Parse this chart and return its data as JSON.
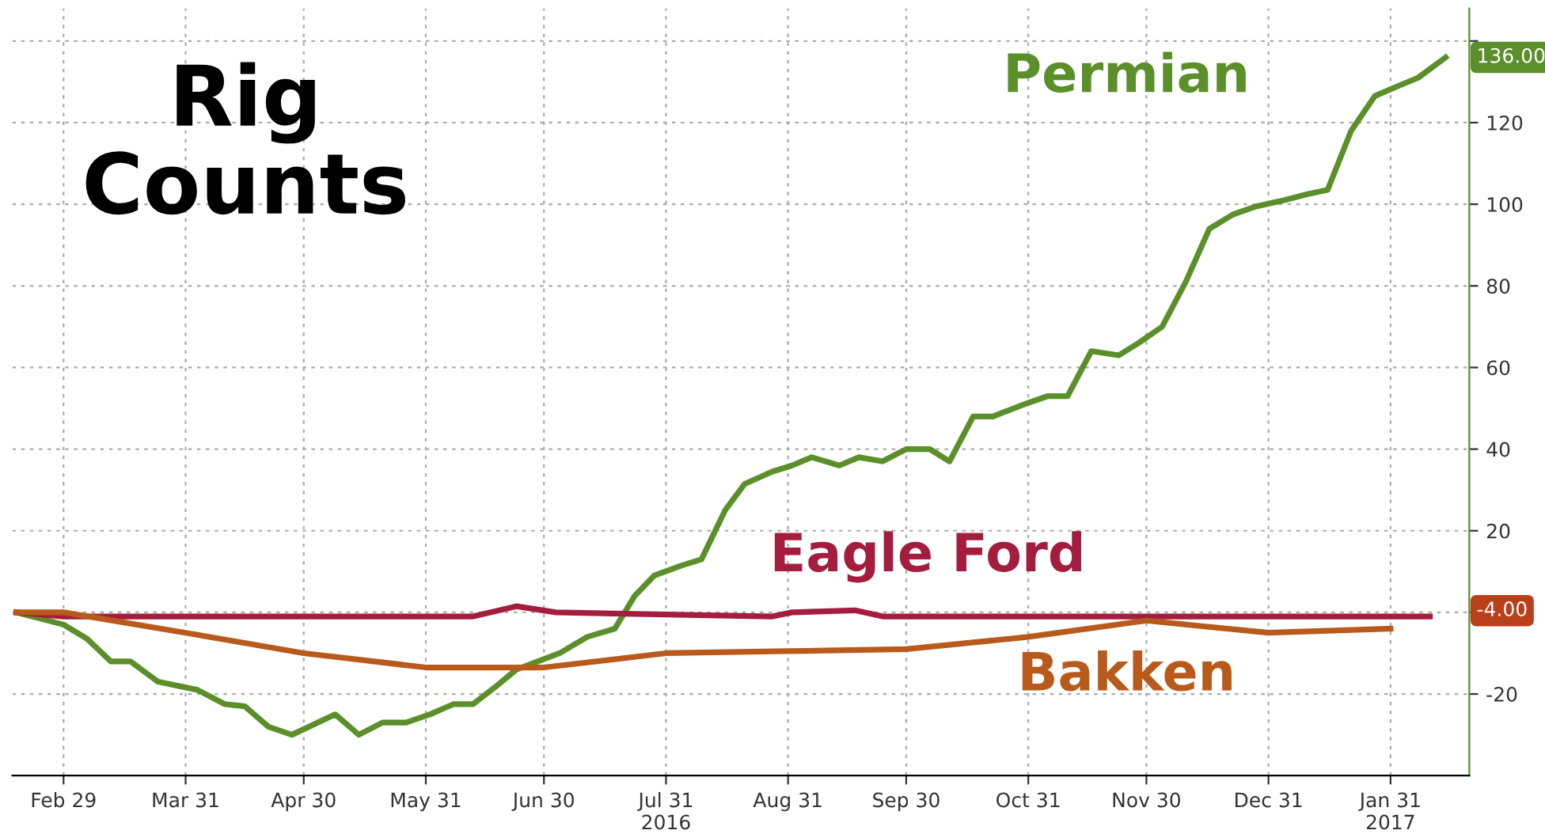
{
  "chart_data": {
    "type": "line",
    "title": "Rig Counts",
    "xlim": [
      "2016-02-16",
      "2017-02-20"
    ],
    "xticks": [
      {
        "value": "2016-02-29",
        "label": "Feb 29"
      },
      {
        "value": "2016-03-31",
        "label": "Mar 31"
      },
      {
        "value": "2016-04-30",
        "label": "Apr 30"
      },
      {
        "value": "2016-05-31",
        "label": "May 31"
      },
      {
        "value": "2016-06-30",
        "label": "Jun 30"
      },
      {
        "value": "2016-07-31",
        "label": "Jul 31\n2016"
      },
      {
        "value": "2016-08-31",
        "label": "Aug 31"
      },
      {
        "value": "2016-09-30",
        "label": "Sep 30"
      },
      {
        "value": "2016-10-31",
        "label": "Oct 31"
      },
      {
        "value": "2016-11-30",
        "label": "Nov 30"
      },
      {
        "value": "2016-12-31",
        "label": "Dec 31"
      },
      {
        "value": "2017-01-31",
        "label": "Jan 31\n2017"
      }
    ],
    "ylim": [
      -40,
      148
    ],
    "yticks": [
      -20,
      {
        "value": 0,
        "label": null
      },
      20,
      40,
      60,
      80,
      100,
      120,
      {
        "value": 140,
        "label": null
      }
    ],
    "grid": true,
    "line_style": "solid",
    "series": [
      {
        "name": "Permian",
        "color": "#5a8f2a",
        "x": [
          "2016-02-17",
          "2016-02-29",
          "2016-03-06",
          "2016-03-12",
          "2016-03-17",
          "2016-03-24",
          "2016-04-03",
          "2016-04-10",
          "2016-04-15",
          "2016-04-21",
          "2016-04-27",
          "2016-05-08",
          "2016-05-14",
          "2016-05-20",
          "2016-05-26",
          "2016-06-01",
          "2016-06-07",
          "2016-06-12",
          "2016-06-18",
          "2016-06-23",
          "2016-07-04",
          "2016-07-11",
          "2016-07-18",
          "2016-07-23",
          "2016-07-28",
          "2016-08-04",
          "2016-08-09",
          "2016-08-15",
          "2016-08-20",
          "2016-08-27",
          "2016-09-01",
          "2016-09-06",
          "2016-09-13",
          "2016-09-18",
          "2016-09-24",
          "2016-09-30",
          "2016-10-06",
          "2016-10-11",
          "2016-10-17",
          "2016-10-22",
          "2016-10-30",
          "2016-11-05",
          "2016-11-10",
          "2016-11-16",
          "2016-11-23",
          "2016-11-28",
          "2016-12-04",
          "2016-12-10",
          "2016-12-16",
          "2016-12-22",
          "2016-12-28",
          "2017-01-04",
          "2017-01-10",
          "2017-01-15",
          "2017-01-21",
          "2017-01-27",
          "2017-02-02",
          "2017-02-07",
          "2017-02-14"
        ],
        "values": [
          0,
          -3,
          -6.5,
          -12,
          -12,
          -17,
          -19,
          -22.5,
          -23,
          -28,
          -30,
          -25,
          -30,
          -27,
          -27,
          -25,
          -22.5,
          -22.5,
          -18,
          -14,
          -10,
          -6,
          -4,
          4,
          9,
          11.5,
          13,
          25,
          31.5,
          34.5,
          36,
          38,
          36,
          38,
          37,
          40,
          40,
          37,
          48,
          48,
          51,
          53,
          53,
          64,
          63,
          66,
          70,
          81,
          94,
          97.5,
          99.5,
          101,
          102.5,
          103.5,
          118,
          126.5,
          129,
          131,
          136
        ]
      },
      {
        "name": "Eagle Ford",
        "color": "#a51d3e",
        "x": [
          "2016-02-17",
          "2016-02-29",
          "2016-06-12",
          "2016-06-23",
          "2016-07-03",
          "2016-08-27",
          "2016-09-01",
          "2016-09-17",
          "2016-09-24",
          "2017-02-10"
        ],
        "values": [
          0,
          -1,
          -1,
          1.5,
          0,
          -1,
          0,
          0.5,
          -1,
          -1
        ]
      },
      {
        "name": "Bakken",
        "color": "#b85a1b",
        "x": [
          "2016-02-17",
          "2016-02-29",
          "2016-03-31",
          "2016-04-30",
          "2016-05-31",
          "2016-06-30",
          "2016-07-31",
          "2016-08-31",
          "2016-09-30",
          "2016-10-31",
          "2016-11-30",
          "2016-12-31",
          "2017-01-31"
        ],
        "values": [
          0,
          0,
          -5,
          -10,
          -13.5,
          -13.5,
          -10,
          -9.5,
          -9,
          -6,
          -2,
          -5,
          -4
        ]
      }
    ],
    "annotations": [
      {
        "text": "136.00",
        "x": "2017-02-14",
        "y": 136
      },
      "-4.00"
    ]
  }
}
